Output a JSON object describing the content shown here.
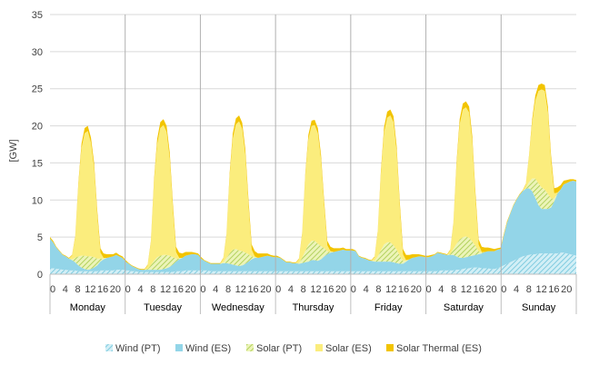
{
  "chart_data": {
    "type": "area",
    "ylabel": "[GW]",
    "ylim": [
      0,
      35
    ],
    "yticks": [
      0,
      5,
      10,
      15,
      20,
      25,
      30,
      35
    ],
    "hour_tick_labels": [
      "0",
      "4",
      "8",
      "12",
      "16",
      "20"
    ],
    "days": [
      "Monday",
      "Tuesday",
      "Wednesday",
      "Thursday",
      "Friday",
      "Saturday",
      "Sunday"
    ],
    "grid": "horizontal",
    "legend_position": "bottom",
    "colors": {
      "wind_pt": "#a8dde8",
      "wind_es": "#93d5e8",
      "solar_pt": "#c8e07a",
      "solar_es": "#fbed7d",
      "solar_thermal_es": "#f2c400",
      "grid": "#d9d9d9",
      "day_separator": "#b0b0b0"
    },
    "series": [
      {
        "name": "Wind (PT)",
        "values": [
          0.8,
          0.8,
          0.7,
          0.7,
          0.6,
          0.6,
          0.5,
          0.5,
          0.5,
          0.4,
          0.4,
          0.4,
          0.4,
          0.4,
          0.4,
          0.4,
          0.5,
          0.5,
          0.5,
          0.5,
          0.5,
          0.6,
          0.6,
          0.6,
          0.5,
          0.5,
          0.4,
          0.4,
          0.3,
          0.3,
          0.3,
          0.3,
          0.3,
          0.3,
          0.3,
          0.3,
          0.3,
          0.3,
          0.3,
          0.3,
          0.4,
          0.4,
          0.4,
          0.5,
          0.5,
          0.5,
          0.5,
          0.5,
          0.5,
          0.5,
          0.5,
          0.4,
          0.4,
          0.4,
          0.4,
          0.4,
          0.4,
          0.4,
          0.4,
          0.4,
          0.4,
          0.4,
          0.4,
          0.4,
          0.4,
          0.4,
          0.4,
          0.4,
          0.4,
          0.4,
          0.4,
          0.4,
          0.4,
          0.4,
          0.4,
          0.4,
          0.4,
          0.4,
          0.4,
          0.4,
          0.4,
          0.4,
          0.4,
          0.4,
          0.4,
          0.4,
          0.4,
          0.4,
          0.4,
          0.4,
          0.4,
          0.4,
          0.4,
          0.4,
          0.4,
          0.4,
          0.4,
          0.4,
          0.4,
          0.4,
          0.4,
          0.4,
          0.4,
          0.4,
          0.4,
          0.4,
          0.4,
          0.4,
          0.4,
          0.4,
          0.4,
          0.4,
          0.4,
          0.4,
          0.4,
          0.4,
          0.4,
          0.4,
          0.4,
          0.4,
          0.4,
          0.4,
          0.4,
          0.4,
          0.5,
          0.5,
          0.5,
          0.5,
          0.5,
          0.6,
          0.6,
          0.7,
          0.8,
          0.8,
          0.9,
          0.9,
          0.9,
          0.8,
          0.8,
          0.8,
          0.7,
          0.7,
          0.8,
          1.0,
          1.2,
          1.4,
          1.6,
          1.8,
          2.0,
          2.2,
          2.4,
          2.5,
          2.6,
          2.7,
          2.7,
          2.8,
          2.8,
          2.8,
          2.8,
          2.8,
          2.8,
          2.8,
          2.9,
          2.9,
          2.8,
          2.7,
          2.6,
          2.5
        ]
      },
      {
        "name": "Wind (ES)",
        "values": [
          4.0,
          3.5,
          2.9,
          2.4,
          2.0,
          1.8,
          1.6,
          1.4,
          1.1,
          0.8,
          0.5,
          0.3,
          0.2,
          0.3,
          0.5,
          0.8,
          1.2,
          1.5,
          1.7,
          1.8,
          1.9,
          2.0,
          1.8,
          1.6,
          1.2,
          0.9,
          0.7,
          0.5,
          0.4,
          0.3,
          0.3,
          0.3,
          0.3,
          0.3,
          0.3,
          0.3,
          0.4,
          0.5,
          0.7,
          1.0,
          1.3,
          1.6,
          1.8,
          2.0,
          2.1,
          2.2,
          2.2,
          2.1,
          1.6,
          1.3,
          1.1,
          1.0,
          1.0,
          1.0,
          1.0,
          1.1,
          1.1,
          1.0,
          0.9,
          0.8,
          0.7,
          0.8,
          1.0,
          1.3,
          1.6,
          1.8,
          1.8,
          1.9,
          2.0,
          2.1,
          2.0,
          1.9,
          1.9,
          1.8,
          1.5,
          1.2,
          1.2,
          1.1,
          1.1,
          1.0,
          1.1,
          1.2,
          1.3,
          1.5,
          1.5,
          1.4,
          1.6,
          2.0,
          2.3,
          2.5,
          2.6,
          2.7,
          2.8,
          2.9,
          2.8,
          2.8,
          2.8,
          2.7,
          2.0,
          1.8,
          1.7,
          1.5,
          1.4,
          1.3,
          1.3,
          1.3,
          1.3,
          1.3,
          1.3,
          1.2,
          1.1,
          1.0,
          1.0,
          1.3,
          1.6,
          1.8,
          1.9,
          2.0,
          2.0,
          1.9,
          1.9,
          2.0,
          2.2,
          2.5,
          2.3,
          2.2,
          2.1,
          2.1,
          2.1,
          1.8,
          1.6,
          1.5,
          1.5,
          1.6,
          1.6,
          1.7,
          1.8,
          2.0,
          2.2,
          2.3,
          2.4,
          2.4,
          2.5,
          2.4,
          4.0,
          5.5,
          6.5,
          7.4,
          8.0,
          8.5,
          8.8,
          9.0,
          9.0,
          8.5,
          7.6,
          6.5,
          6.0,
          6.0,
          6.0,
          6.2,
          7.0,
          8.0,
          8.5,
          9.2,
          9.5,
          9.8,
          10.0,
          10.0
        ]
      },
      {
        "name": "Solar (PT)",
        "values": [
          0,
          0,
          0,
          0,
          0,
          0,
          0,
          0.1,
          0.6,
          1.2,
          1.6,
          1.8,
          1.8,
          1.7,
          1.4,
          0.9,
          0.4,
          0.1,
          0,
          0,
          0,
          0,
          0,
          0,
          0,
          0,
          0,
          0,
          0,
          0,
          0,
          0.1,
          0.6,
          1.2,
          1.7,
          1.9,
          1.9,
          1.8,
          1.5,
          1.0,
          0.4,
          0.1,
          0,
          0,
          0,
          0,
          0,
          0,
          0,
          0,
          0,
          0,
          0,
          0,
          0,
          0.1,
          0.7,
          1.4,
          2.0,
          2.2,
          2.1,
          1.9,
          1.5,
          1.0,
          0.4,
          0.1,
          0,
          0,
          0,
          0,
          0,
          0,
          0,
          0,
          0,
          0,
          0,
          0,
          0,
          0.1,
          0.7,
          1.5,
          2.3,
          2.6,
          2.6,
          2.3,
          1.8,
          1.1,
          0.4,
          0.1,
          0,
          0,
          0,
          0,
          0,
          0,
          0,
          0,
          0,
          0,
          0,
          0,
          0,
          0.1,
          0.7,
          1.5,
          2.3,
          2.6,
          2.6,
          2.3,
          1.8,
          1.1,
          0.4,
          0.1,
          0,
          0,
          0,
          0,
          0,
          0,
          0,
          0,
          0,
          0,
          0,
          0,
          0,
          0.1,
          0.8,
          1.7,
          2.5,
          2.8,
          2.8,
          2.5,
          1.9,
          1.2,
          0.4,
          0.1,
          0,
          0,
          0,
          0,
          0,
          0,
          0,
          0,
          0,
          0,
          0,
          0,
          0,
          0.1,
          0.8,
          1.7,
          2.6,
          2.9,
          2.9,
          2.6,
          2.0,
          1.2,
          0.4,
          0.1,
          0,
          0,
          0,
          0,
          0,
          0
        ]
      },
      {
        "name": "Solar (ES)",
        "values": [
          0,
          0,
          0,
          0,
          0,
          0,
          0,
          0.5,
          2.7,
          9.5,
          14.5,
          16.5,
          16.9,
          15.3,
          12.0,
          5.8,
          0.8,
          0.1,
          0,
          0,
          0,
          0,
          0,
          0,
          0,
          0,
          0,
          0,
          0,
          0,
          0,
          0.5,
          3.0,
          10.4,
          15.2,
          17.2,
          17.5,
          16.6,
          13.1,
          6.4,
          0.9,
          0.1,
          0,
          0,
          0,
          0,
          0,
          0,
          0,
          0,
          0,
          0,
          0,
          0,
          0,
          0.5,
          3.0,
          10.3,
          15.0,
          16.8,
          17.4,
          16.5,
          13.1,
          6.5,
          0.9,
          0.1,
          0,
          0,
          0,
          0,
          0,
          0,
          0,
          0,
          0,
          0,
          0,
          0,
          0,
          0.5,
          3.1,
          10.0,
          14.2,
          15.5,
          15.6,
          14.9,
          11.6,
          5.7,
          0.8,
          0.1,
          0,
          0,
          0,
          0,
          0,
          0,
          0,
          0,
          0,
          0,
          0,
          0,
          0,
          0.5,
          3.2,
          10.2,
          15.1,
          16.8,
          17.1,
          16.6,
          13.2,
          6.4,
          0.9,
          0.1,
          0,
          0,
          0,
          0,
          0,
          0,
          0,
          0,
          0,
          0,
          0,
          0,
          0,
          0.5,
          3.3,
          10.5,
          15.5,
          17.2,
          17.4,
          16.9,
          13.4,
          6.5,
          0.9,
          0.1,
          0,
          0,
          0,
          0,
          0,
          0,
          0,
          0,
          0,
          0,
          0,
          0,
          0,
          0.5,
          3.4,
          7.5,
          10.5,
          12.5,
          13.2,
          13.3,
          11.0,
          5.0,
          0.7,
          0.1,
          0,
          0,
          0,
          0,
          0,
          0
        ]
      },
      {
        "name": "Solar Thermal (ES)",
        "values": [
          0.2,
          0.2,
          0.1,
          0.1,
          0.1,
          0.1,
          0.1,
          0.1,
          0.2,
          0.4,
          0.6,
          0.7,
          0.7,
          0.7,
          0.7,
          0.7,
          0.6,
          0.6,
          0.5,
          0.4,
          0.3,
          0.3,
          0.2,
          0.2,
          0.2,
          0.1,
          0.1,
          0.1,
          0.1,
          0.1,
          0.1,
          0.1,
          0.2,
          0.5,
          0.7,
          0.8,
          0.8,
          0.8,
          0.8,
          0.8,
          0.7,
          0.7,
          0.6,
          0.5,
          0.4,
          0.3,
          0.2,
          0.2,
          0.2,
          0.1,
          0.1,
          0.1,
          0.1,
          0.1,
          0.1,
          0.1,
          0.2,
          0.5,
          0.7,
          0.8,
          0.8,
          0.8,
          0.8,
          0.8,
          0.7,
          0.7,
          0.6,
          0.5,
          0.4,
          0.3,
          0.2,
          0.2,
          0.2,
          0.1,
          0.1,
          0.1,
          0.1,
          0.1,
          0.1,
          0.1,
          0.2,
          0.4,
          0.6,
          0.7,
          0.7,
          0.7,
          0.7,
          0.7,
          0.6,
          0.6,
          0.5,
          0.4,
          0.3,
          0.3,
          0.2,
          0.2,
          0.2,
          0.1,
          0.1,
          0.1,
          0.1,
          0.1,
          0.1,
          0.1,
          0.2,
          0.5,
          0.7,
          0.8,
          0.8,
          0.8,
          0.8,
          0.8,
          0.7,
          0.7,
          0.6,
          0.5,
          0.4,
          0.3,
          0.2,
          0.2,
          0.2,
          0.2,
          0.1,
          0.1,
          0.1,
          0.1,
          0.1,
          0.1,
          0.2,
          0.5,
          0.7,
          0.8,
          0.8,
          0.8,
          0.8,
          0.8,
          0.7,
          0.7,
          0.6,
          0.5,
          0.4,
          0.3,
          0.2,
          0.2,
          0.2,
          0.2,
          0.1,
          0.1,
          0.1,
          0.1,
          0.1,
          0.1,
          0.2,
          0.5,
          0.7,
          0.8,
          0.8,
          0.8,
          0.8,
          0.8,
          0.7,
          0.7,
          0.6,
          0.5,
          0.4,
          0.3,
          0.2,
          0.2
        ]
      }
    ]
  }
}
